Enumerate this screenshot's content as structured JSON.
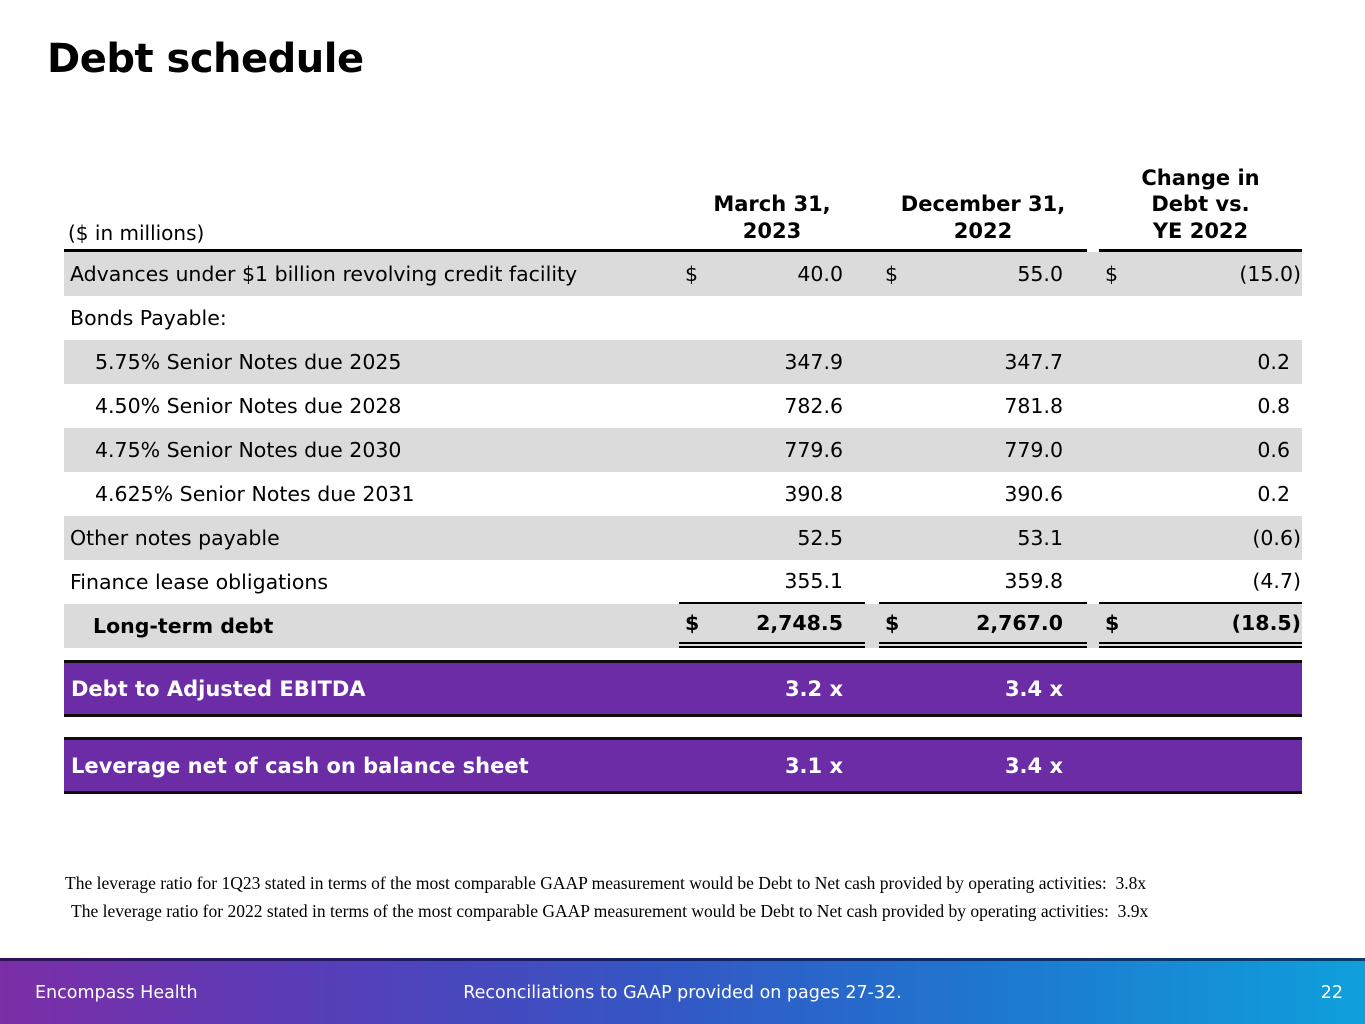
{
  "title": "Debt schedule",
  "colors": {
    "row_stripe": "#dbdbdb",
    "ratio_bar_purple": "#6b2ca5",
    "footer_gradient_left": "#7b2ea6",
    "footer_gradient_right": "#0fa0dc"
  },
  "table": {
    "units_label": "($ in millions)",
    "col_headers": [
      "March 31,\n2023",
      "December 31,\n2022",
      "Change in\nDebt vs.\nYE 2022"
    ],
    "rows": [
      {
        "label": "Advances under $1 billion revolving credit facility",
        "currency": "$",
        "v1": "40.0",
        "v2": "55.0",
        "v3": "(15.0)"
      },
      {
        "label": "Bonds Payable:",
        "v1": "",
        "v2": "",
        "v3": ""
      },
      {
        "label": "5.75% Senior Notes due 2025",
        "v1": "347.9",
        "v2": "347.7",
        "v3": "0.2"
      },
      {
        "label": "4.50% Senior Notes due 2028",
        "v1": "782.6",
        "v2": "781.8",
        "v3": "0.8"
      },
      {
        "label": "4.75% Senior Notes due 2030",
        "v1": "779.6",
        "v2": "779.0",
        "v3": "0.6"
      },
      {
        "label": "4.625% Senior Notes due 2031",
        "v1": "390.8",
        "v2": "390.6",
        "v3": "0.2"
      },
      {
        "label": "Other notes payable",
        "v1": "52.5",
        "v2": "53.1",
        "v3": "(0.6)"
      },
      {
        "label": "Finance lease obligations",
        "v1": "355.1",
        "v2": "359.8",
        "v3": "(4.7)"
      },
      {
        "label": "Long-term debt",
        "currency": "$",
        "v1": "2,748.5",
        "v2": "2,767.0",
        "v3": "(18.5)"
      }
    ]
  },
  "ratio_bars": [
    {
      "label": "Debt to Adjusted EBITDA",
      "v1": "3.2 x",
      "v2": "3.4 x"
    },
    {
      "label": "Leverage net of cash on balance sheet",
      "v1": "3.1 x",
      "v2": "3.4 x"
    }
  ],
  "footnotes": [
    "The leverage ratio for 1Q23 stated in terms of the most comparable GAAP measurement would be Debt to Net cash provided by operating activities:  3.8x",
    "The leverage ratio for 2022 stated in terms of the most comparable GAAP measurement would be Debt to Net cash provided by operating activities:  3.9x"
  ],
  "footer": {
    "company": "Encompass Health",
    "note": "Reconciliations to GAAP provided on pages 27-32.",
    "page": "22"
  }
}
